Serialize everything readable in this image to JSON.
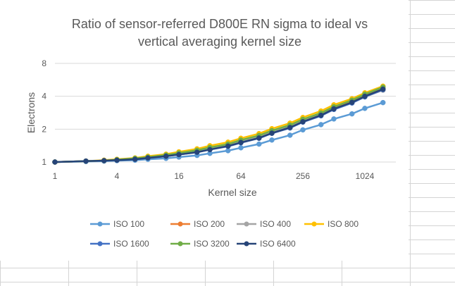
{
  "chart_data": {
    "type": "line",
    "title_lines": [
      "Ratio of sensor-referred D800E RN sigma to ideal vs",
      "vertical averaging kernel size"
    ],
    "xlabel": "Kernel size",
    "ylabel": "Electrons",
    "x_scale": "log2",
    "y_scale": "log2",
    "xlim": [
      1,
      2048
    ],
    "ylim": [
      1,
      8
    ],
    "x_ticks": [
      1,
      4,
      16,
      64,
      256,
      1024
    ],
    "x_tick_labels": [
      "1",
      "4",
      "16",
      "64",
      "256",
      "1024"
    ],
    "y_ticks": [
      1,
      2,
      4,
      8
    ],
    "y_tick_labels": [
      "1",
      "2",
      "4",
      "8"
    ],
    "grid": "horizontal",
    "legend_position": "bottom",
    "x": [
      1,
      2,
      3,
      4,
      6,
      8,
      12,
      16,
      24,
      32,
      48,
      64,
      96,
      128,
      192,
      256,
      384,
      512,
      768,
      1024,
      1536
    ],
    "series": [
      {
        "name": "ISO 100",
        "color": "#5B9BD5",
        "values": [
          1.0,
          1.01,
          1.02,
          1.03,
          1.04,
          1.06,
          1.08,
          1.11,
          1.15,
          1.2,
          1.27,
          1.35,
          1.46,
          1.59,
          1.76,
          1.97,
          2.2,
          2.48,
          2.76,
          3.1,
          3.5
        ]
      },
      {
        "name": "ISO 200",
        "color": "#ED7D31",
        "values": [
          1.0,
          1.02,
          1.03,
          1.05,
          1.08,
          1.11,
          1.15,
          1.2,
          1.27,
          1.35,
          1.45,
          1.57,
          1.73,
          1.91,
          2.14,
          2.42,
          2.77,
          3.15,
          3.6,
          4.05,
          4.72
        ]
      },
      {
        "name": "ISO 400",
        "color": "#A5A5A5",
        "values": [
          1.0,
          1.02,
          1.03,
          1.05,
          1.08,
          1.11,
          1.15,
          1.2,
          1.26,
          1.34,
          1.44,
          1.55,
          1.7,
          1.88,
          2.1,
          2.37,
          2.7,
          3.08,
          3.5,
          3.95,
          4.55
        ]
      },
      {
        "name": "ISO 800",
        "color": "#FFC000",
        "values": [
          1.0,
          1.02,
          1.04,
          1.06,
          1.09,
          1.13,
          1.18,
          1.24,
          1.32,
          1.41,
          1.52,
          1.65,
          1.82,
          2.02,
          2.27,
          2.56,
          2.93,
          3.34,
          3.8,
          4.3,
          4.95
        ]
      },
      {
        "name": "ISO 1600",
        "color": "#4472C4",
        "values": [
          1.0,
          1.02,
          1.03,
          1.04,
          1.06,
          1.09,
          1.13,
          1.17,
          1.23,
          1.3,
          1.39,
          1.5,
          1.65,
          1.83,
          2.05,
          2.32,
          2.65,
          3.03,
          3.47,
          3.95,
          4.6
        ]
      },
      {
        "name": "ISO 3200",
        "color": "#70AD47",
        "values": [
          1.0,
          1.02,
          1.03,
          1.05,
          1.08,
          1.11,
          1.16,
          1.21,
          1.28,
          1.36,
          1.46,
          1.59,
          1.75,
          1.94,
          2.18,
          2.46,
          2.81,
          3.21,
          3.68,
          4.18,
          4.85
        ]
      },
      {
        "name": "ISO 6400",
        "color": "#264478",
        "values": [
          1.0,
          1.02,
          1.03,
          1.04,
          1.06,
          1.09,
          1.13,
          1.17,
          1.23,
          1.3,
          1.4,
          1.51,
          1.66,
          1.84,
          2.07,
          2.34,
          2.68,
          3.07,
          3.52,
          4.0,
          4.65
        ]
      }
    ]
  }
}
